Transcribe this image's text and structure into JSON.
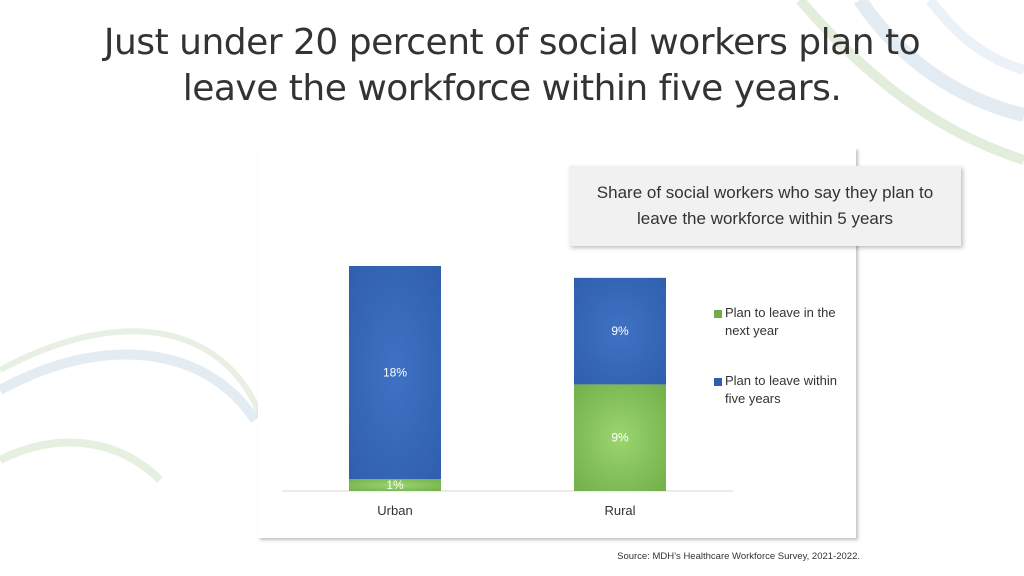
{
  "slide": {
    "title": "Just under 20 percent of social workers plan to leave the workforce within five years.",
    "source": "Source: MDH’s Healthcare Workforce Survey, 2021-2022."
  },
  "colors": {
    "green": "#70ad47",
    "blue": "#2e5dab",
    "heading_bg": "#f1f1f1",
    "axis": "#d9d9d9"
  },
  "chart_data": {
    "type": "bar",
    "stacked": true,
    "title": "Share of social workers who say they plan to leave the workforce within 5 years",
    "categories": [
      "Urban",
      "Rural"
    ],
    "series": [
      {
        "name": "Plan to leave in the next year",
        "values": [
          1,
          9
        ],
        "labels": [
          "1%",
          "9%"
        ],
        "color": "#70ad47"
      },
      {
        "name": "Plan to leave within five years",
        "values": [
          18,
          9
        ],
        "labels": [
          "18%",
          "9%"
        ],
        "color": "#2e5dab"
      }
    ],
    "ylim": [
      0,
      19
    ],
    "grid": false,
    "legend": "right",
    "y_axis_visible": false
  }
}
